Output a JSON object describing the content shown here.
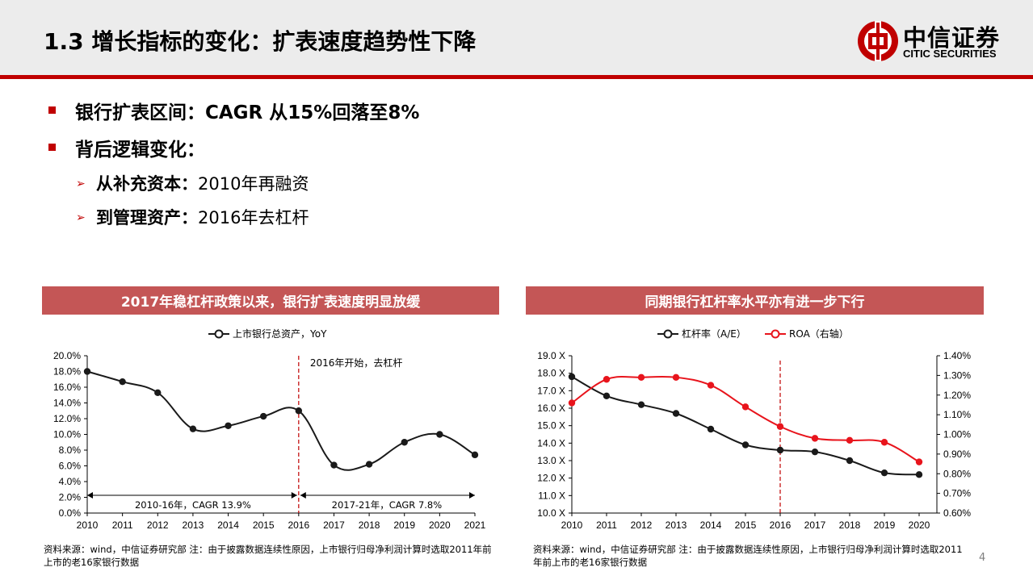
{
  "header": {
    "title": "1.3 增长指标的变化：扩表速度趋势性下降",
    "logo_cn": "中信证券",
    "logo_en": "CITIC SECURITIES"
  },
  "bullets": [
    {
      "text": "银行扩表区间：CAGR 从15%回落至8%"
    },
    {
      "text": "背后逻辑变化："
    }
  ],
  "sub_bullets": [
    {
      "bold": "从补充资本：",
      "text": "2010年再融资"
    },
    {
      "bold": "到管理资产：",
      "text": "2016年去杠杆"
    }
  ],
  "left_panel": {
    "title": "2017年稳杠杆政策以来，银行扩表速度明显放缓",
    "source": "资料来源：wind，中信证券研究部  注：由于披露数据连续性原因，上市银行归母净利润计算时选取2011年前上市的老16家银行数据"
  },
  "right_panel": {
    "title": "同期银行杠杆率水平亦有进一步下行",
    "source": "资料来源：wind，中信证券研究部  注：由于披露数据连续性原因，上市银行归母净利润计算时选取2011年前上市的老16家银行数据"
  },
  "page_number": "4",
  "colors": {
    "accent": "#c00000",
    "panel_title_bg": "#c45656",
    "series_black": "#1a1a1a",
    "series_red": "#e8141c"
  },
  "chart_data": [
    {
      "type": "line",
      "legend": [
        "上市银行总资产，YoY"
      ],
      "legend_position": "top",
      "x": [
        "2010",
        "2011",
        "2012",
        "2013",
        "2014",
        "2015",
        "2016",
        "2017",
        "2018",
        "2019",
        "2020",
        "2021"
      ],
      "series": [
        {
          "name": "上市银行总资产，YoY",
          "values": [
            18.0,
            16.7,
            15.3,
            10.7,
            11.1,
            12.3,
            13.0,
            6.1,
            6.2,
            9.0,
            10.0,
            7.4
          ]
        }
      ],
      "ylim": [
        0,
        20
      ],
      "yticks": [
        "0.0%",
        "2.0%",
        "4.0%",
        "6.0%",
        "8.0%",
        "10.0%",
        "12.0%",
        "14.0%",
        "16.0%",
        "18.0%",
        "20.0%"
      ],
      "annotations": {
        "vline_label": "2016年开始，去杠杆",
        "vline_x": "2016",
        "range_left": "2010-16年，CAGR 13.9%",
        "range_right": "2017-21年，CAGR 7.8%"
      }
    },
    {
      "type": "line",
      "legend": [
        "杠杆率（A/E）",
        "ROA（右轴）"
      ],
      "legend_position": "top",
      "x": [
        "2010",
        "2011",
        "2012",
        "2013",
        "2014",
        "2015",
        "2016",
        "2017",
        "2018",
        "2019",
        "2020"
      ],
      "series": [
        {
          "name": "杠杆率（A/E）",
          "axis": "left",
          "values": [
            17.8,
            16.7,
            16.2,
            15.7,
            14.8,
            13.9,
            13.6,
            13.5,
            13.0,
            12.3,
            12.2
          ]
        },
        {
          "name": "ROA（右轴）",
          "axis": "right",
          "values": [
            1.16,
            1.28,
            1.29,
            1.29,
            1.25,
            1.14,
            1.04,
            0.98,
            0.97,
            0.96,
            0.86
          ]
        }
      ],
      "ylim_left": [
        10,
        19
      ],
      "ylim_right": [
        0.6,
        1.4
      ],
      "yticks_left": [
        "10.0 X",
        "11.0 X",
        "12.0 X",
        "13.0 X",
        "14.0 X",
        "15.0 X",
        "16.0 X",
        "17.0 X",
        "18.0 X",
        "19.0 X"
      ],
      "yticks_right": [
        "0.60%",
        "0.70%",
        "0.80%",
        "0.90%",
        "1.00%",
        "1.10%",
        "1.20%",
        "1.30%",
        "1.40%"
      ],
      "annotations": {
        "vline_x": "2016"
      }
    }
  ]
}
